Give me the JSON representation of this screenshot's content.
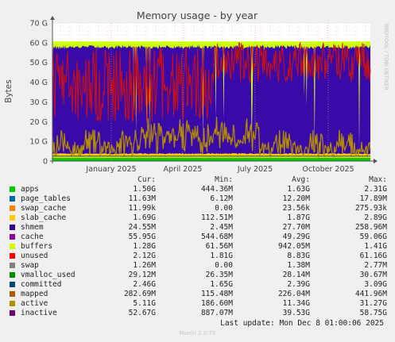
{
  "chart_data": {
    "type": "area",
    "title": "Memory usage - by year",
    "ylabel": "Bytes",
    "side_label": "RRDTOOL / TOBI OETIKER",
    "ylim": [
      0,
      70
    ],
    "yunit": "G",
    "yticks": [
      "0",
      "10 G",
      "20 G",
      "30 G",
      "40 G",
      "50 G",
      "60 G",
      "70 G"
    ],
    "xticks": [
      "January 2025",
      "April 2025",
      "July 2025",
      "October 2025"
    ],
    "grid": true,
    "legend_headers": {
      "cur": "Cur:",
      "min": "Min:",
      "avg": "Avg:",
      "max": "Max:"
    },
    "series": [
      {
        "name": "apps",
        "color": "#00cc00",
        "cur": "1.50G",
        "min": "444.36M",
        "avg": "1.63G",
        "max": "2.31G"
      },
      {
        "name": "page_tables",
        "color": "#0066b3",
        "cur": "11.63M",
        "min": "6.12M",
        "avg": "12.20M",
        "max": "17.89M"
      },
      {
        "name": "swap_cache",
        "color": "#ff8000",
        "cur": "11.99k",
        "min": "0.00",
        "avg": "23.56k",
        "max": "275.93k"
      },
      {
        "name": "slab_cache",
        "color": "#ffcc00",
        "cur": "1.69G",
        "min": "112.51M",
        "avg": "1.87G",
        "max": "2.89G"
      },
      {
        "name": "shmem",
        "color": "#330099",
        "cur": "24.55M",
        "min": "2.45M",
        "avg": "27.70M",
        "max": "258.96M"
      },
      {
        "name": "cache",
        "color": "#990099",
        "cur": "55.95G",
        "min": "544.68M",
        "avg": "49.29G",
        "max": "59.06G"
      },
      {
        "name": "buffers",
        "color": "#ccff00",
        "cur": "1.28G",
        "min": "61.56M",
        "avg": "942.05M",
        "max": "1.41G"
      },
      {
        "name": "unused",
        "color": "#ff0000",
        "cur": "2.12G",
        "min": "1.81G",
        "avg": "8.83G",
        "max": "61.16G"
      },
      {
        "name": "swap",
        "color": "#808080",
        "cur": "1.26M",
        "min": "0.00",
        "avg": "1.38M",
        "max": "2.77M"
      },
      {
        "name": "vmalloc_used",
        "color": "#008f00",
        "cur": "29.12M",
        "min": "26.35M",
        "avg": "28.14M",
        "max": "30.67M"
      },
      {
        "name": "committed",
        "color": "#00487d",
        "cur": "2.46G",
        "min": "1.65G",
        "avg": "2.39G",
        "max": "3.09G"
      },
      {
        "name": "mapped",
        "color": "#b35a00",
        "cur": "282.69M",
        "min": "115.48M",
        "avg": "226.04M",
        "max": "441.96M"
      },
      {
        "name": "active",
        "color": "#b38f00",
        "cur": "5.11G",
        "min": "186.60M",
        "avg": "11.34G",
        "max": "31.27G"
      },
      {
        "name": "inactive",
        "color": "#6b006b",
        "cur": "52.67G",
        "min": "887.07M",
        "avg": "39.53G",
        "max": "58.75G"
      }
    ]
  },
  "footer": {
    "last_update": "Last update: Mon Dec  8 01:00:06 2025",
    "munin": "Munin 2.0.75"
  }
}
